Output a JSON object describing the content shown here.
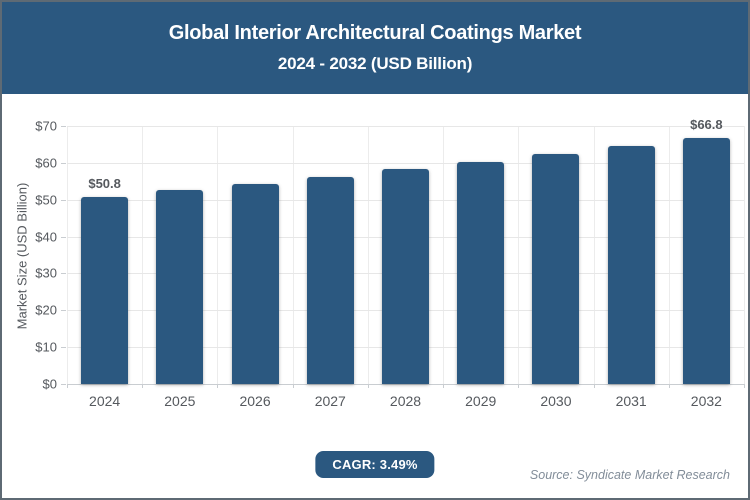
{
  "page": {
    "border_color": "#5E6A74",
    "background": "#ffffff"
  },
  "header": {
    "title_line1": "Global Interior Architectural Coatings Market",
    "title_line2": "2024 - 2032 (USD Billion)",
    "background": "#2B5880",
    "text_color": "#ffffff"
  },
  "chart_data": {
    "type": "bar",
    "title": "Global Interior Architectural Coatings Market 2024 - 2032 (USD Billion)",
    "categories": [
      "2024",
      "2025",
      "2026",
      "2027",
      "2028",
      "2029",
      "2030",
      "2031",
      "2032"
    ],
    "values": [
      50.8,
      52.6,
      54.4,
      56.3,
      58.3,
      60.3,
      62.4,
      64.6,
      66.8
    ],
    "value_labels": [
      "$50.8",
      null,
      null,
      null,
      null,
      null,
      null,
      null,
      "$66.8"
    ],
    "xlabel": "",
    "ylabel": "Market Size (USD Billion)",
    "ylim": [
      0,
      70
    ],
    "ytick_step": 10,
    "ytick_labels": [
      "$0",
      "$10",
      "$20",
      "$30",
      "$40",
      "$50",
      "$60",
      "$70"
    ],
    "grid": true,
    "legend": false,
    "bar_color": "#2B5880",
    "label_color": "#55595e"
  },
  "footer": {
    "cagr_label": "CAGR: 3.49%",
    "source": "Source: Syndicate Market Research",
    "badge_color": "#2B5880"
  }
}
